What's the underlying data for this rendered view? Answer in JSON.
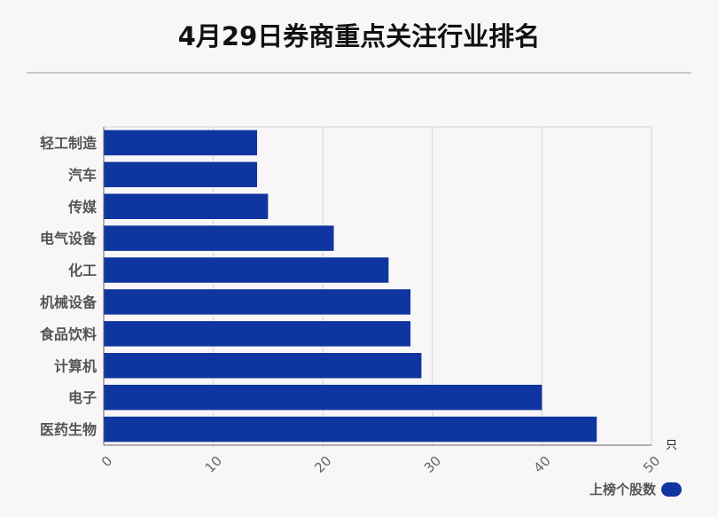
{
  "title": "4月29日券商重点关注行业排名",
  "chart_data": {
    "type": "bar",
    "orientation": "horizontal",
    "categories": [
      "轻工制造",
      "汽车",
      "传媒",
      "电气设备",
      "化工",
      "机械设备",
      "食品饮料",
      "计算机",
      "电子",
      "医药生物"
    ],
    "series": [
      {
        "name": "上榜个股数",
        "values": [
          14,
          14,
          15,
          21,
          26,
          28,
          28,
          29,
          40,
          45
        ]
      }
    ],
    "xlim": [
      0,
      50
    ],
    "xticks": [
      0,
      10,
      20,
      30,
      40,
      50
    ],
    "x_unit": "只",
    "grid": true,
    "legend_position": "bottom-right",
    "bar_color": "#0f36a0"
  }
}
